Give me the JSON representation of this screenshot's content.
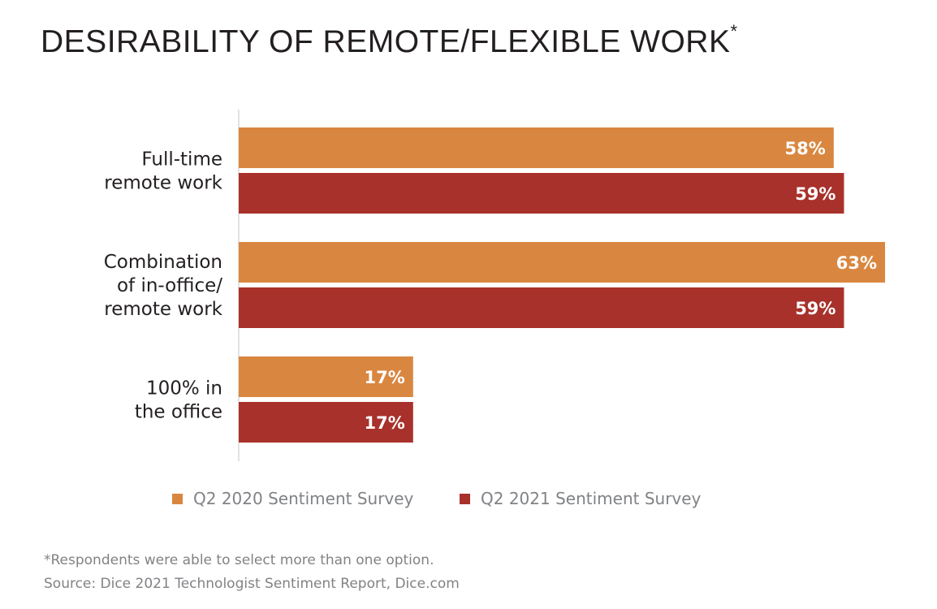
{
  "title": "DESIRABILITY OF REMOTE/FLEXIBLE WORK",
  "title_asterisk": "*",
  "colors": {
    "series_2020": "#d98740",
    "series_2021": "#a8312b",
    "axis": "#d9d9d9",
    "text_dark": "#231f20",
    "text_gray": "#808285"
  },
  "chart_data": {
    "type": "bar",
    "orientation": "horizontal",
    "title": "DESIRABILITY OF REMOTE/FLEXIBLE WORK",
    "categories": [
      [
        "Full-time",
        "remote work"
      ],
      [
        "Combination",
        "of in-office/",
        "remote work"
      ],
      [
        "100% in",
        "the office"
      ]
    ],
    "series": [
      {
        "name": "Q2 2020 Sentiment Survey",
        "values": [
          58,
          63,
          17
        ],
        "labels": [
          "58%",
          "63%",
          "17%"
        ]
      },
      {
        "name": "Q2 2021 Sentiment Survey",
        "values": [
          59,
          59,
          17
        ],
        "labels": [
          "59%",
          "59%",
          "17%"
        ]
      }
    ],
    "xlim": [
      0,
      63
    ],
    "grid": false,
    "legend": "bottom"
  },
  "legend": {
    "items": [
      {
        "label": "Q2 2020 Sentiment Survey"
      },
      {
        "label": "Q2 2021 Sentiment Survey"
      }
    ]
  },
  "footnotes": {
    "note": "*Respondents were able to select more than one option.",
    "source": "Source: Dice 2021 Technologist Sentiment Report, Dice.com"
  }
}
